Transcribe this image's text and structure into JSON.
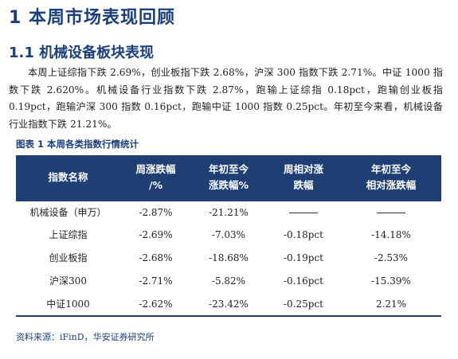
{
  "heading1": "1 本周市场表现回顾",
  "heading2": "1.1 机械设备板块表现",
  "paragraph": "本周上证综指下跌 2.69%，创业板指下跌 2.68%，沪深 300 指数下跌 2.71%。中证 1000 指数下跌 2.620%。机械设备行业指数下跌 2.87%，跑输上证综指 0.18pct，跑输创业板指 0.19pct，跑输沪深 300 指数 0.16pct，跑输中证 1000 指数 0.25pct。年初至今来看，机械设备行业指数下跌 21.21%。",
  "caption": "图表 1 本周各类指数行情统计",
  "table": {
    "headers": [
      "指数名称",
      "周涨跌幅/%",
      "年初至今涨跌幅%",
      "周相对涨跌幅",
      "年初至今相对涨跌幅"
    ],
    "rows": [
      {
        "name": "机械设备（申万）",
        "weekly": "-2.87%",
        "ytd": "-21.21%",
        "rel_weekly": "——",
        "rel_ytd": "——"
      },
      {
        "name": "上证综指",
        "weekly": "-2.69%",
        "ytd": "-7.03%",
        "rel_weekly": "-0.18pct",
        "rel_ytd": "-14.18%"
      },
      {
        "name": "创业板指",
        "weekly": "-2.68%",
        "ytd": "-18.68%",
        "rel_weekly": "-0.19pct",
        "rel_ytd": "-2.53%"
      },
      {
        "name": "沪深300",
        "weekly": "-2.71%",
        "ytd": "-5.82%",
        "rel_weekly": "-0.16pct",
        "rel_ytd": "-15.39%"
      },
      {
        "name": "中证1000",
        "weekly": "-2.62%",
        "ytd": "-23.42%",
        "rel_weekly": "-0.25pct",
        "rel_ytd": "2.21%"
      }
    ]
  },
  "source": "资料来源：iFinD，华安证券研究所"
}
